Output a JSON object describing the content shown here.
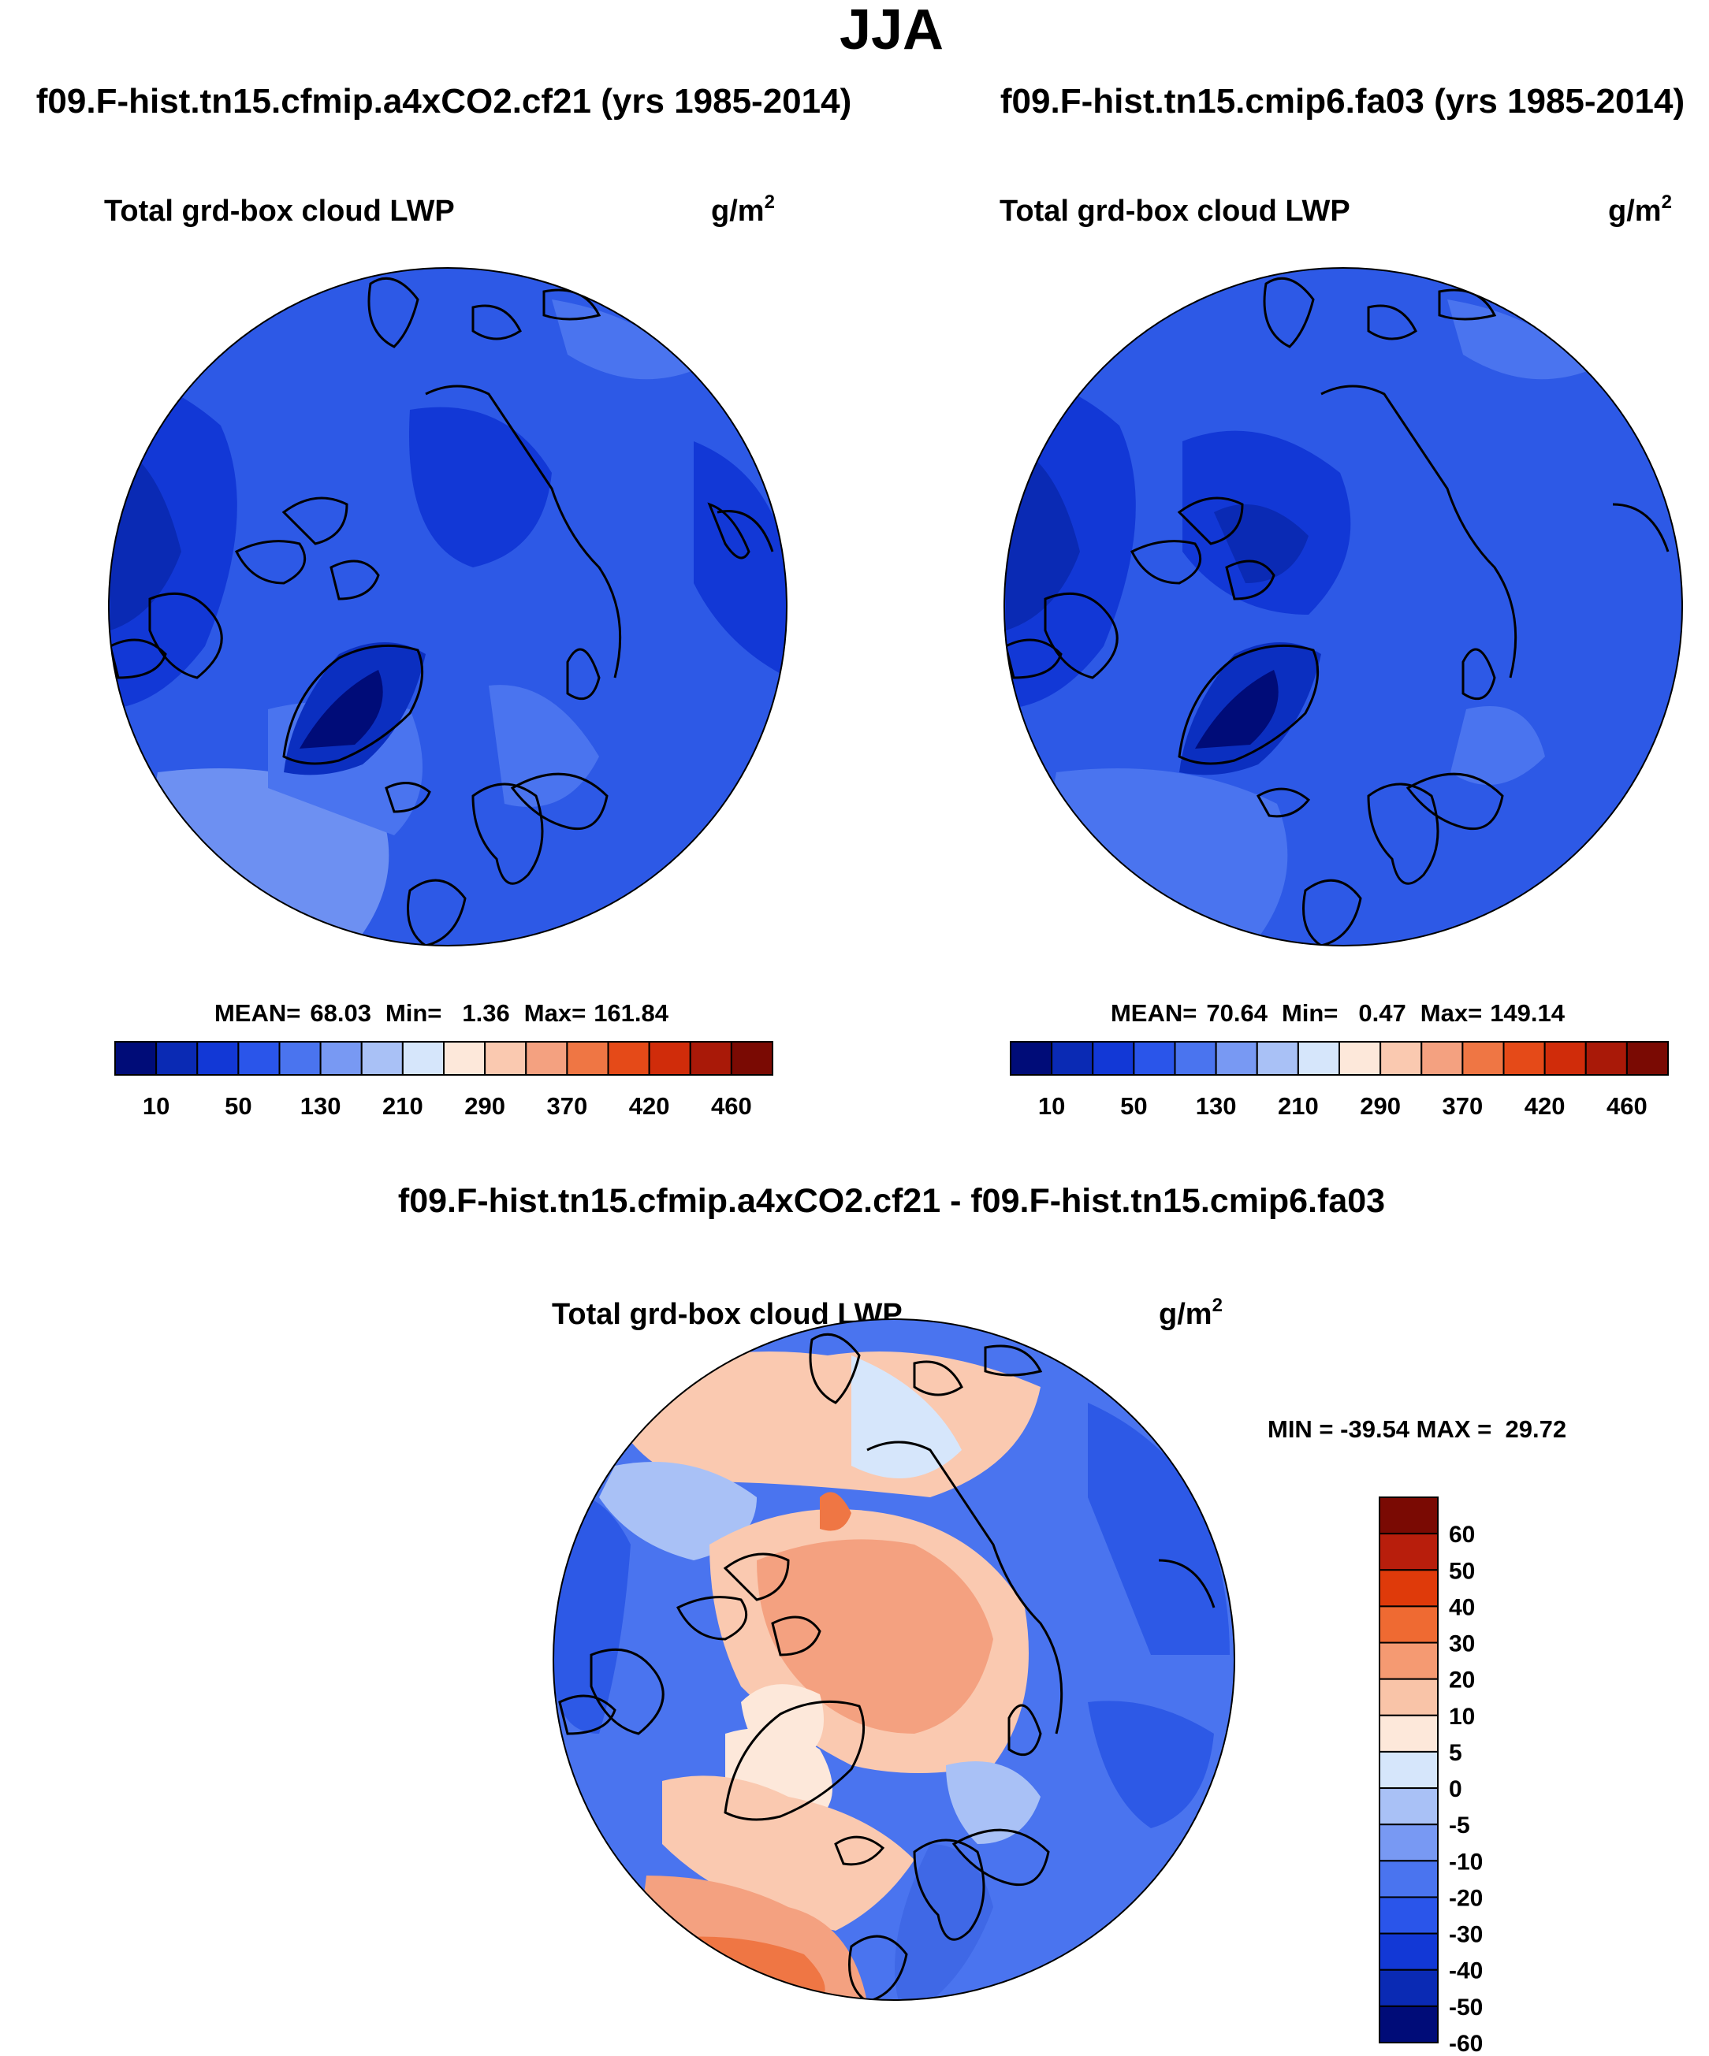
{
  "page": {
    "title": "JJA",
    "diff_title": "f09.F-hist.tn15.cfmip.a4xCO2.cf21 - f09.F-hist.tn15.cmip6.fa03"
  },
  "chart_data": [
    {
      "type": "heatmap",
      "projection": "polar-stereographic-north",
      "case_title": "f09.F-hist.tn15.cfmip.a4xCO2.cf21 (yrs 1985-2014)",
      "variable": "Total grd-box cloud LWP",
      "units_base": "g/m",
      "units_exp": "2",
      "stats": {
        "mean_label": "MEAN=",
        "mean": "68.03",
        "min_label": "Min=",
        "min": "1.36",
        "max_label": "Max=",
        "max": "161.84"
      },
      "colorbar_ticks": [
        "10",
        "50",
        "130",
        "210",
        "290",
        "370",
        "420",
        "460"
      ]
    },
    {
      "type": "heatmap",
      "projection": "polar-stereographic-north",
      "case_title": "f09.F-hist.tn15.cmip6.fa03 (yrs 1985-2014)",
      "variable": "Total grd-box cloud LWP",
      "units_base": "g/m",
      "units_exp": "2",
      "stats": {
        "mean_label": "MEAN=",
        "mean": "70.64",
        "min_label": "Min=",
        "min": "0.47",
        "max_label": "Max=",
        "max": "149.14"
      },
      "colorbar_ticks": [
        "10",
        "50",
        "130",
        "210",
        "290",
        "370",
        "420",
        "460"
      ]
    },
    {
      "type": "heatmap",
      "projection": "polar-stereographic-north",
      "variable": "Total grd-box cloud LWP",
      "units_base": "g/m",
      "units_exp": "2",
      "minmax_text": "MIN = -39.54 MAX =  29.72",
      "colorbar_ticks": [
        "60",
        "50",
        "40",
        "30",
        "20",
        "10",
        "5",
        "0",
        "-5",
        "-10",
        "-20",
        "-30",
        "-40",
        "-50",
        "-60"
      ]
    }
  ],
  "palettes": {
    "absolute": [
      "#000c78",
      "#0a2ab4",
      "#1238d6",
      "#2a55ea",
      "#4a74ef",
      "#7899f3",
      "#a9c1f6",
      "#d6e6fb",
      "#fde8da",
      "#fac9b0",
      "#f4a180",
      "#ef7644",
      "#e54a18",
      "#d02c0a",
      "#a91908",
      "#7a0a03"
    ],
    "diff_top_to_bottom": [
      "#7a0a03",
      "#b81e0c",
      "#df3a0a",
      "#ef6a32",
      "#f59a72",
      "#f9c4a8",
      "#fde8da",
      "#d6e6fb",
      "#a9c1f6",
      "#7899f3",
      "#4a74ef",
      "#2a55ea",
      "#1238d6",
      "#0a2ab4",
      "#000c78"
    ],
    "map_abs_bg": "#2d59e6",
    "map_abs_dark": "#0b2fc0",
    "map_abs_light": "#6d90f2",
    "map_diff_blue": "#3f68e6",
    "map_diff_lightblue": "#a9c1f6",
    "map_diff_peach": "#fac9b0",
    "map_diff_orange": "#f4a180",
    "map_diff_deep": "#ef7644"
  }
}
